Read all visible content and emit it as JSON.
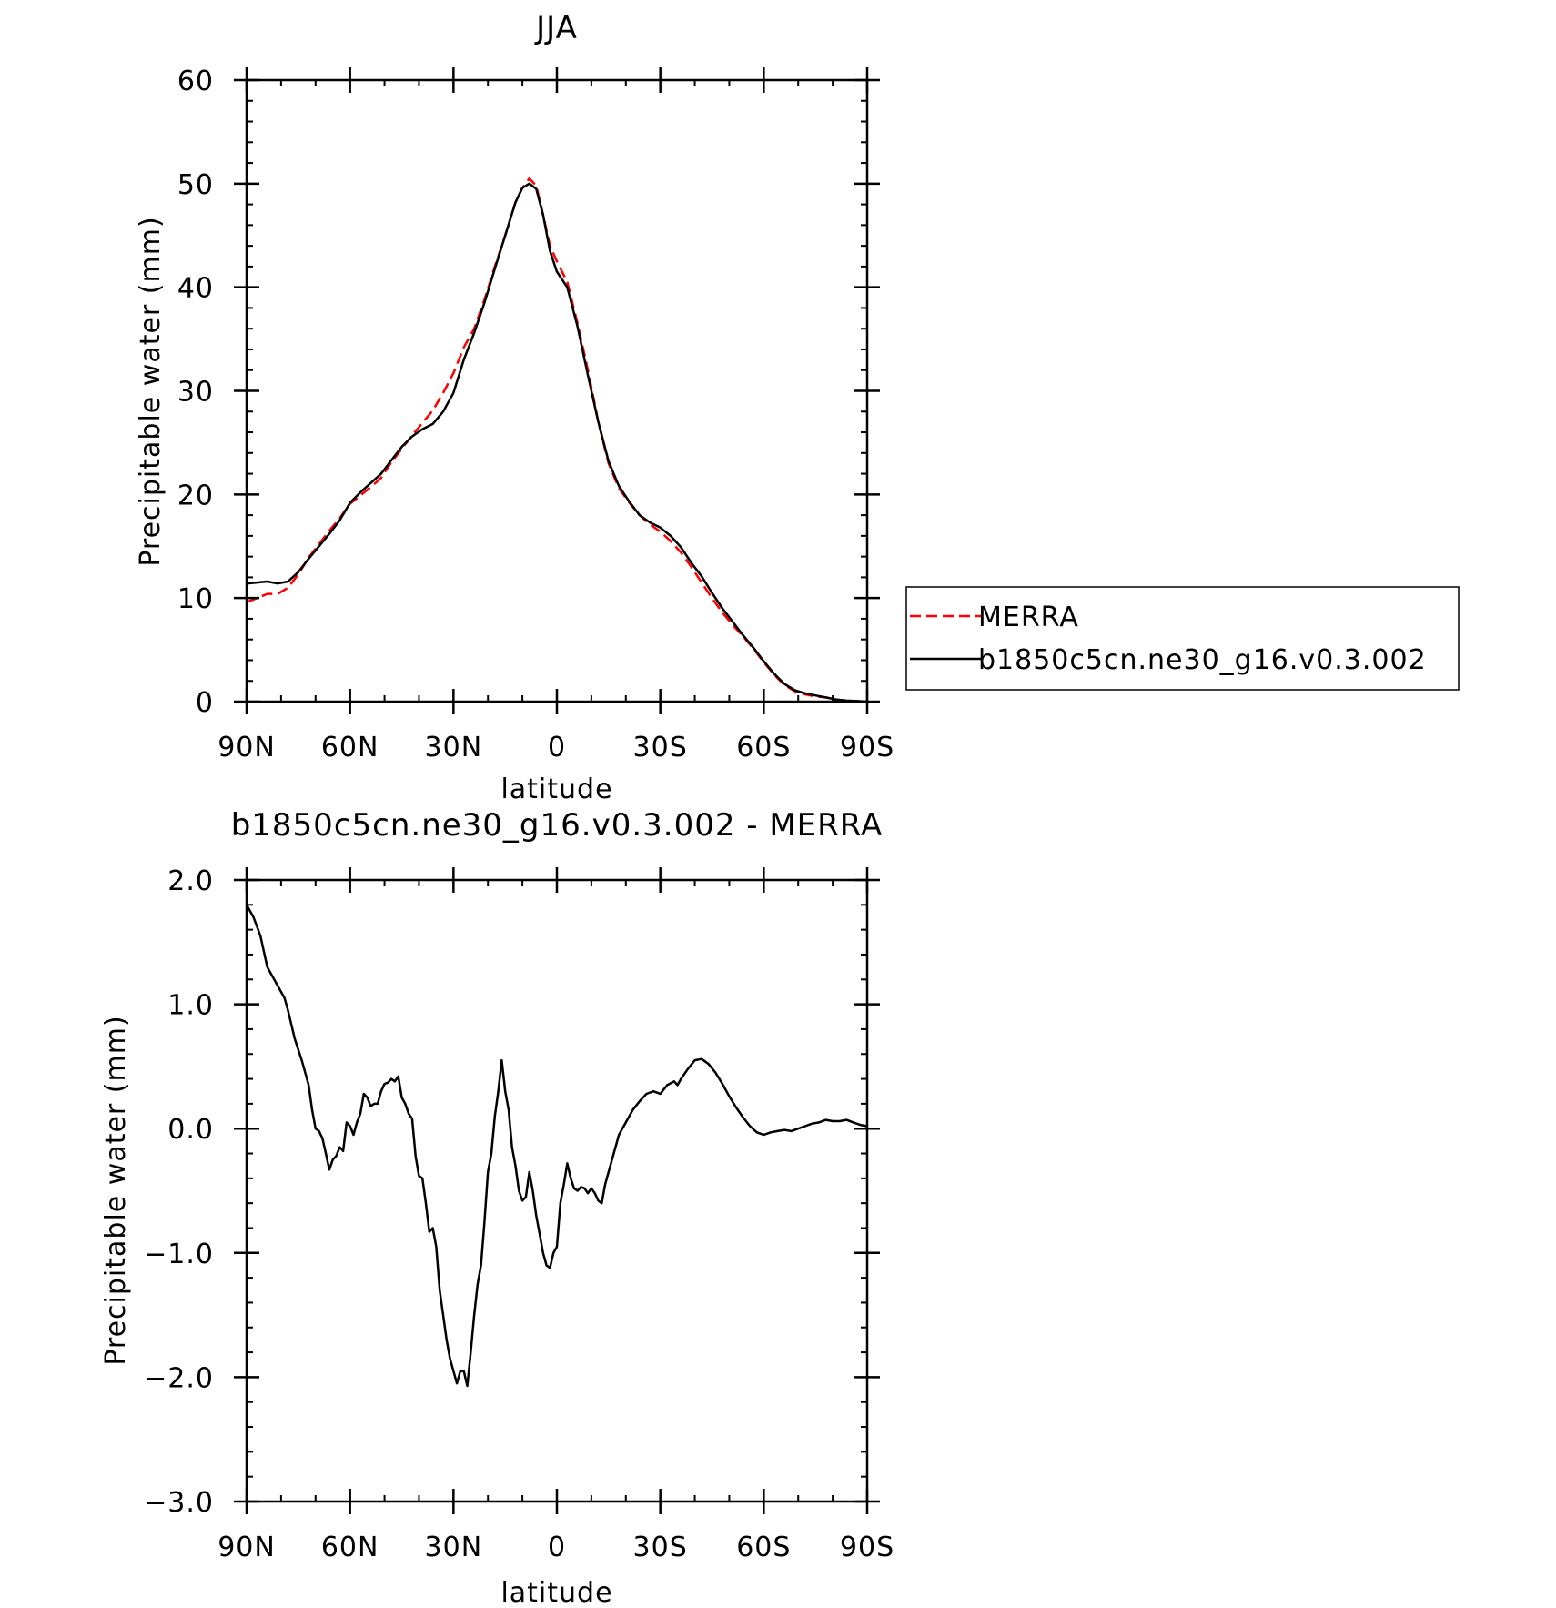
{
  "chart_data": [
    {
      "type": "line",
      "title": "JJA",
      "xlabel": "latitude",
      "ylabel": "Precipitable water (mm)",
      "xlim": [
        90,
        -90
      ],
      "ylim": [
        0,
        60
      ],
      "xticks": [
        90,
        60,
        30,
        0,
        -30,
        -60,
        -90
      ],
      "xtick_labels": [
        "90N",
        "60N",
        "30N",
        "0",
        "30S",
        "60S",
        "90S"
      ],
      "yticks": [
        0,
        10,
        20,
        30,
        40,
        50,
        60
      ],
      "ytick_labels": [
        "0",
        "10",
        "20",
        "30",
        "40",
        "50",
        "60"
      ],
      "legend_position": "right",
      "grid": false,
      "series": [
        {
          "name": "MERRA",
          "color": "#ff0000",
          "dash": "dashed",
          "x": [
            90,
            87,
            84,
            81,
            78,
            75,
            72,
            69,
            66,
            63,
            60,
            57,
            54,
            51,
            48,
            45,
            42,
            39,
            36,
            33,
            30,
            27,
            24,
            21,
            18,
            15,
            12,
            10,
            8,
            6,
            4,
            2,
            0,
            -3,
            -6,
            -9,
            -12,
            -15,
            -18,
            -21,
            -24,
            -27,
            -30,
            -33,
            -36,
            -39,
            -42,
            -45,
            -48,
            -51,
            -54,
            -57,
            -60,
            -63,
            -66,
            -69,
            -72,
            -75,
            -78,
            -81,
            -84,
            -87,
            -90
          ],
          "y": [
            9.6,
            10.0,
            10.4,
            10.4,
            11.0,
            12.3,
            13.9,
            15.2,
            16.5,
            17.7,
            19.1,
            19.9,
            20.7,
            21.6,
            23.1,
            24.4,
            25.7,
            26.9,
            28.1,
            29.8,
            31.7,
            34.2,
            36.0,
            38.8,
            42.0,
            45.0,
            48.2,
            49.6,
            50.5,
            49.8,
            47.0,
            44.0,
            42.5,
            40.5,
            36.5,
            32.0,
            27.0,
            23.0,
            20.6,
            19.2,
            18.0,
            17.1,
            16.4,
            15.5,
            14.4,
            13.0,
            11.5,
            10.0,
            8.6,
            7.4,
            6.3,
            5.1,
            3.8,
            2.6,
            1.6,
            1.0,
            0.7,
            0.5,
            0.4,
            0.2,
            0.1,
            0.05,
            0.0
          ]
        },
        {
          "name": "b1850c5cn.ne30_g16.v0.3.002",
          "color": "#000000",
          "dash": "solid",
          "x": [
            90,
            87,
            84,
            81,
            78,
            75,
            72,
            69,
            66,
            63,
            60,
            57,
            54,
            51,
            48,
            45,
            42,
            39,
            36,
            33,
            30,
            27,
            24,
            21,
            18,
            15,
            12,
            10,
            8,
            6,
            4,
            2,
            0,
            -3,
            -6,
            -9,
            -12,
            -15,
            -18,
            -21,
            -24,
            -27,
            -30,
            -33,
            -36,
            -39,
            -42,
            -45,
            -48,
            -51,
            -54,
            -57,
            -60,
            -63,
            -66,
            -69,
            -72,
            -75,
            -78,
            -81,
            -84,
            -87,
            -90
          ],
          "y": [
            11.4,
            11.5,
            11.6,
            11.4,
            11.6,
            12.5,
            13.8,
            15.0,
            16.2,
            17.5,
            19.2,
            20.2,
            21.1,
            22.0,
            23.3,
            24.6,
            25.6,
            26.3,
            26.8,
            28.0,
            29.8,
            33.0,
            35.6,
            38.5,
            41.8,
            45.0,
            48.2,
            49.6,
            50.0,
            49.5,
            47.0,
            43.5,
            41.5,
            40.0,
            36.2,
            31.5,
            27.0,
            23.2,
            20.8,
            19.3,
            18.0,
            17.3,
            16.8,
            16.0,
            14.9,
            13.4,
            12.1,
            10.5,
            9.0,
            7.7,
            6.4,
            5.2,
            3.9,
            2.7,
            1.7,
            1.1,
            0.8,
            0.6,
            0.4,
            0.2,
            0.1,
            0.05,
            0.0
          ]
        }
      ]
    },
    {
      "type": "line",
      "title": "b1850c5cn.ne30_g16.v0.3.002 - MERRA",
      "xlabel": "latitude",
      "ylabel": "Precipitable water (mm)",
      "xlim": [
        90,
        -90
      ],
      "ylim": [
        -3.0,
        2.0
      ],
      "xticks": [
        90,
        60,
        30,
        0,
        -30,
        -60,
        -90
      ],
      "xtick_labels": [
        "90N",
        "60N",
        "30N",
        "0",
        "30S",
        "60S",
        "90S"
      ],
      "yticks": [
        -3.0,
        -2.0,
        -1.0,
        0.0,
        1.0,
        2.0
      ],
      "ytick_labels": [
        "−3.0",
        "−2.0",
        "−1.0",
        "0.0",
        "1.0",
        "2.0"
      ],
      "grid": false,
      "series": [
        {
          "color": "#000000",
          "dash": "solid",
          "x": [
            90,
            88,
            86,
            84,
            83,
            81,
            79,
            78,
            76,
            74,
            72,
            71,
            70,
            69,
            68,
            67,
            66,
            65,
            64,
            63,
            62,
            61,
            60,
            59,
            58,
            57,
            56,
            55,
            54,
            53,
            52,
            51,
            50,
            49,
            48,
            47,
            46,
            45,
            44,
            43,
            42,
            41,
            40,
            39,
            38,
            37,
            36,
            35,
            34,
            33,
            32,
            31,
            30,
            29,
            28,
            27,
            26,
            25,
            24,
            23,
            22,
            21,
            20,
            19,
            18,
            17,
            16,
            15,
            14,
            13,
            12,
            11,
            10,
            9,
            8,
            7,
            6,
            5,
            4,
            3,
            2,
            1,
            0,
            -1,
            -2,
            -3,
            -4,
            -5,
            -6,
            -7,
            -8,
            -9,
            -10,
            -11,
            -12,
            -13,
            -14,
            -15,
            -16,
            -17,
            -18,
            -20,
            -22,
            -24,
            -26,
            -28,
            -30,
            -32,
            -34,
            -35,
            -36,
            -38,
            -40,
            -42,
            -44,
            -46,
            -48,
            -50,
            -52,
            -54,
            -56,
            -58,
            -60,
            -62,
            -64,
            -66,
            -68,
            -70,
            -72,
            -74,
            -76,
            -78,
            -80,
            -82,
            -84,
            -86,
            -88,
            -90
          ],
          "y": [
            1.8,
            1.7,
            1.55,
            1.3,
            1.25,
            1.15,
            1.05,
            0.95,
            0.72,
            0.55,
            0.35,
            0.15,
            0.0,
            -0.02,
            -0.08,
            -0.2,
            -0.33,
            -0.25,
            -0.22,
            -0.15,
            -0.18,
            0.05,
            0.02,
            -0.05,
            0.05,
            0.12,
            0.28,
            0.25,
            0.18,
            0.2,
            0.2,
            0.3,
            0.36,
            0.37,
            0.4,
            0.38,
            0.42,
            0.25,
            0.2,
            0.12,
            0.08,
            -0.22,
            -0.38,
            -0.4,
            -0.6,
            -0.83,
            -0.8,
            -0.95,
            -1.3,
            -1.5,
            -1.7,
            -1.85,
            -1.95,
            -2.05,
            -1.95,
            -1.95,
            -2.07,
            -1.8,
            -1.5,
            -1.25,
            -1.1,
            -0.75,
            -0.35,
            -0.2,
            0.1,
            0.3,
            0.55,
            0.3,
            0.15,
            -0.15,
            -0.3,
            -0.5,
            -0.58,
            -0.55,
            -0.35,
            -0.5,
            -0.7,
            -0.85,
            -1.0,
            -1.1,
            -1.12,
            -1.0,
            -0.95,
            -0.6,
            -0.45,
            -0.28,
            -0.4,
            -0.48,
            -0.5,
            -0.47,
            -0.48,
            -0.52,
            -0.48,
            -0.52,
            -0.58,
            -0.6,
            -0.45,
            -0.35,
            -0.25,
            -0.15,
            -0.05,
            0.05,
            0.15,
            0.22,
            0.28,
            0.3,
            0.28,
            0.35,
            0.38,
            0.35,
            0.4,
            0.48,
            0.55,
            0.56,
            0.52,
            0.45,
            0.36,
            0.26,
            0.17,
            0.09,
            0.02,
            -0.03,
            -0.05,
            -0.03,
            -0.02,
            -0.01,
            -0.02,
            0.0,
            0.02,
            0.04,
            0.05,
            0.07,
            0.06,
            0.06,
            0.07,
            0.05,
            0.03,
            0.02
          ]
        }
      ]
    }
  ]
}
